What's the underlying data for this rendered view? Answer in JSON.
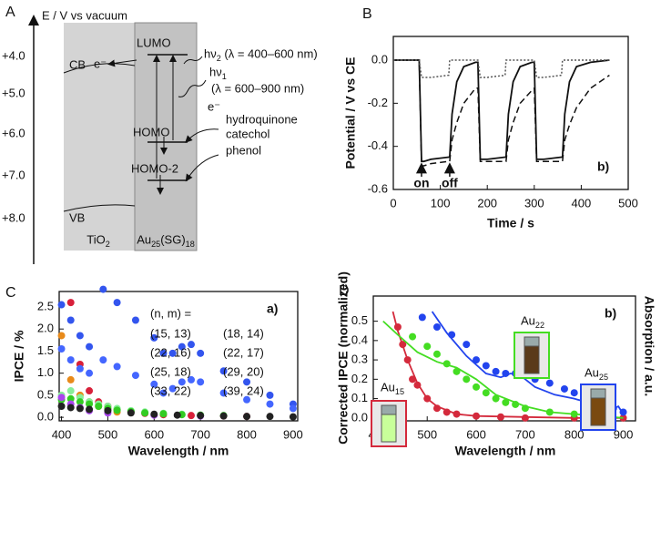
{
  "diagram": {
    "panel": "A",
    "axis_label": "E / V vs vacuum",
    "energy_ticks": [
      "+4.0",
      "+5.0",
      "+6.0",
      "+7.0",
      "+8.0"
    ],
    "cb": "CB",
    "vb": "VB",
    "electron_1": "e⁻",
    "lumo": "LUMO",
    "homo": "HOMO",
    "homo2": "HOMO-2",
    "hv2": "hν2 (λ = 400–600 nm)",
    "hv1": "hν1",
    "hv1_range": "(λ = 600–900 nm)",
    "electron_2": "e⁻",
    "donors": [
      "hydroquinone",
      "catechol",
      "phenol"
    ],
    "tio2": "TiO2",
    "cluster": "Au25(SG)18"
  },
  "chart_data": [
    {
      "type": "line",
      "panel": "B",
      "xlabel": "Time / s",
      "ylabel": "Potential / V vs CE",
      "note": "b)",
      "xlim": [
        0,
        500
      ],
      "xticks": [
        0,
        100,
        200,
        300,
        400,
        500
      ],
      "ylim": [
        -0.6,
        0.11
      ],
      "yticks": [
        {
          "value": 0,
          "label": "0.0"
        },
        -0.2,
        -0.4,
        -0.6
      ],
      "events": [
        {
          "x": 60,
          "label": "on"
        },
        {
          "x": 120,
          "label": "off"
        }
      ],
      "x": [
        0,
        55,
        60,
        65,
        80,
        118,
        120,
        125,
        135,
        150,
        175,
        180,
        185,
        200,
        238,
        240,
        245,
        255,
        270,
        295,
        300,
        305,
        320,
        358,
        360,
        365,
        375,
        390,
        420,
        460
      ],
      "series": [
        {
          "color": "#111111",
          "dash": "solid",
          "values": [
            0,
            0,
            -0.47,
            -0.47,
            -0.46,
            -0.45,
            -0.45,
            -0.25,
            -0.1,
            -0.03,
            -0.01,
            -0.01,
            -0.46,
            -0.46,
            -0.45,
            -0.45,
            -0.25,
            -0.1,
            -0.03,
            -0.01,
            -0.01,
            -0.46,
            -0.46,
            -0.45,
            -0.45,
            -0.25,
            -0.1,
            -0.03,
            -0.01,
            0
          ]
        },
        {
          "color": "#111111",
          "dash": "dashed",
          "values": [
            0,
            0,
            -0.49,
            -0.49,
            -0.48,
            -0.47,
            -0.47,
            -0.37,
            -0.29,
            -0.2,
            -0.13,
            -0.13,
            -0.47,
            -0.47,
            -0.47,
            -0.47,
            -0.37,
            -0.29,
            -0.2,
            -0.14,
            -0.13,
            -0.47,
            -0.47,
            -0.47,
            -0.47,
            -0.37,
            -0.3,
            -0.22,
            -0.13,
            -0.07
          ]
        },
        {
          "color": "#555555",
          "dash": "dotted",
          "values": [
            0,
            0,
            -0.08,
            -0.08,
            -0.08,
            -0.07,
            0,
            0,
            0,
            0,
            0,
            0,
            -0.08,
            -0.08,
            -0.07,
            0,
            0,
            0,
            0,
            0,
            0,
            -0.08,
            -0.08,
            -0.07,
            0,
            0,
            0,
            0,
            0,
            0
          ]
        }
      ]
    },
    {
      "type": "scatter",
      "panel": "C",
      "xlabel": "Wavelength / nm",
      "ylabel": "IPCE / %",
      "note": "a)",
      "legend_title": "(n, m) =",
      "xlim": [
        395,
        910
      ],
      "xticks": [
        400,
        500,
        600,
        700,
        800,
        900
      ],
      "ylim": [
        -0.08,
        2.85
      ],
      "yticks": [
        {
          "value": 0,
          "label": "0.0"
        },
        0.5,
        {
          "value": 1,
          "label": "1.0"
        },
        1.5,
        {
          "value": 2,
          "label": "2.0"
        },
        2.5
      ],
      "series": [
        {
          "name": "(15, 13)",
          "color": "#d8203a",
          "x": [
            420,
            440,
            460,
            480,
            500,
            520,
            550,
            580,
            620,
            680,
            750,
            800
          ],
          "values": [
            2.6,
            1.2,
            0.6,
            0.35,
            0.25,
            0.18,
            0.12,
            0.09,
            0.06,
            0.04,
            0.03,
            0.02
          ]
        },
        {
          "name": "(18, 14)",
          "color": "#e88a1a",
          "x": [
            400,
            420,
            440,
            460,
            480,
            500,
            520
          ],
          "values": [
            1.85,
            0.85,
            0.5,
            0.35,
            0.25,
            0.18,
            0.12
          ]
        },
        {
          "name": "(22, 16)",
          "color": "#88ee99",
          "x": [
            400,
            420,
            440,
            460,
            480,
            500,
            520,
            550,
            580,
            620,
            660,
            700
          ],
          "values": [
            0.5,
            0.6,
            0.45,
            0.35,
            0.3,
            0.25,
            0.2,
            0.15,
            0.12,
            0.09,
            0.07,
            0.05
          ]
        },
        {
          "name": "(22, 17)",
          "color": "#33cc22",
          "x": [
            400,
            420,
            440,
            460,
            480,
            500,
            520,
            550,
            580,
            620,
            660,
            700,
            750
          ],
          "values": [
            0.4,
            0.42,
            0.35,
            0.3,
            0.25,
            0.2,
            0.16,
            0.13,
            0.1,
            0.08,
            0.06,
            0.05,
            0.04
          ]
        },
        {
          "name": "(25, 18)",
          "color": "#3355ee",
          "x": [
            400,
            420,
            440,
            460,
            490,
            520,
            560,
            600,
            620,
            640,
            660,
            680,
            700,
            750,
            800,
            850,
            900
          ],
          "values": [
            2.55,
            2.2,
            1.85,
            1.6,
            2.9,
            2.6,
            2.2,
            1.8,
            1.45,
            1.45,
            1.6,
            1.65,
            1.45,
            1.05,
            0.8,
            0.5,
            0.3
          ]
        },
        {
          "name": "(29, 20)",
          "color": "#4466ff",
          "x": [
            400,
            420,
            440,
            460,
            490,
            520,
            560,
            600,
            620,
            640,
            660,
            680,
            700,
            750,
            800,
            850,
            900
          ],
          "values": [
            1.55,
            1.3,
            1.1,
            1.0,
            1.3,
            1.15,
            0.95,
            0.75,
            0.55,
            0.65,
            0.8,
            0.85,
            0.8,
            0.55,
            0.4,
            0.3,
            0.2
          ]
        },
        {
          "name": "(33, 22)",
          "color": "#aa44ee",
          "x": [
            400,
            420,
            440,
            460,
            500,
            600,
            700
          ],
          "values": [
            0.45,
            0.3,
            0.22,
            0.15,
            0.1,
            0.05,
            0.03
          ]
        },
        {
          "name": "(39, 24)",
          "color": "#222222",
          "x": [
            400,
            420,
            440,
            460,
            500,
            550,
            600,
            650,
            700,
            750,
            800,
            850,
            900
          ],
          "values": [
            0.25,
            0.22,
            0.2,
            0.18,
            0.15,
            0.1,
            0.07,
            0.05,
            0.04,
            0.03,
            0.02,
            0.02,
            0.01
          ]
        }
      ]
    },
    {
      "type": "scatter",
      "panel": "D",
      "xlabel": "Wavelength / nm",
      "ylabel": "Corrected IPCE (normalized)",
      "y2label": "Absorption / a.u.",
      "note": "b)",
      "xlim": [
        390,
        925
      ],
      "xticks": [
        400,
        500,
        600,
        700,
        800,
        900
      ],
      "ylim": [
        -0.015,
        0.63
      ],
      "yticks": [
        {
          "value": 0,
          "label": "0.0"
        },
        0.1,
        0.2,
        0.3,
        0.4,
        0.5
      ],
      "series": [
        {
          "name": "Au15",
          "color": "#d42a3c",
          "x": [
            440,
            450,
            460,
            470,
            480,
            500,
            520,
            540,
            560,
            600,
            650,
            700,
            800,
            900
          ],
          "values": [
            0.47,
            0.38,
            0.3,
            0.2,
            0.17,
            0.1,
            0.05,
            0.03,
            0.02,
            0.01,
            0.005,
            0,
            0,
            0
          ],
          "curve": {
            "x": [
              430,
              440,
              460,
              480,
              500,
              520,
              560,
              600,
              700,
              800,
              900
            ],
            "values": [
              0.55,
              0.45,
              0.3,
              0.18,
              0.1,
              0.06,
              0.02,
              0.01,
              0.005,
              0,
              0
            ]
          }
        },
        {
          "name": "Au22",
          "color": "#44dd22",
          "x": [
            470,
            500,
            520,
            540,
            560,
            580,
            600,
            620,
            640,
            660,
            680,
            700,
            750,
            800,
            860
          ],
          "values": [
            0.42,
            0.37,
            0.33,
            0.28,
            0.24,
            0.2,
            0.16,
            0.13,
            0.1,
            0.08,
            0.07,
            0.05,
            0.03,
            0.02,
            0.01
          ],
          "curve": {
            "x": [
              410,
              440,
              480,
              520,
              560,
              600,
              640,
              680,
              700,
              750,
              800,
              850,
              900
            ],
            "values": [
              0.5,
              0.43,
              0.34,
              0.29,
              0.26,
              0.2,
              0.12,
              0.08,
              0.06,
              0.03,
              0.02,
              0.01,
              0
            ]
          }
        },
        {
          "name": "Au25",
          "color": "#2244ee",
          "x": [
            490,
            520,
            550,
            580,
            600,
            620,
            640,
            660,
            680,
            700,
            720,
            750,
            780,
            800,
            830,
            860,
            880,
            900
          ],
          "values": [
            0.52,
            0.47,
            0.43,
            0.38,
            0.3,
            0.27,
            0.24,
            0.23,
            0.23,
            0.22,
            0.2,
            0.18,
            0.15,
            0.13,
            0.1,
            0.08,
            0.05,
            0.03
          ],
          "curve": {
            "x": [
              510,
              540,
              580,
              620,
              650,
              670,
              690,
              720,
              760,
              800,
              840,
              870,
              890,
              900
            ],
            "values": [
              0.55,
              0.44,
              0.32,
              0.23,
              0.21,
              0.23,
              0.22,
              0.16,
              0.12,
              0.1,
              0.07,
              0.04,
              0.06,
              0.02
            ]
          }
        }
      ]
    }
  ]
}
